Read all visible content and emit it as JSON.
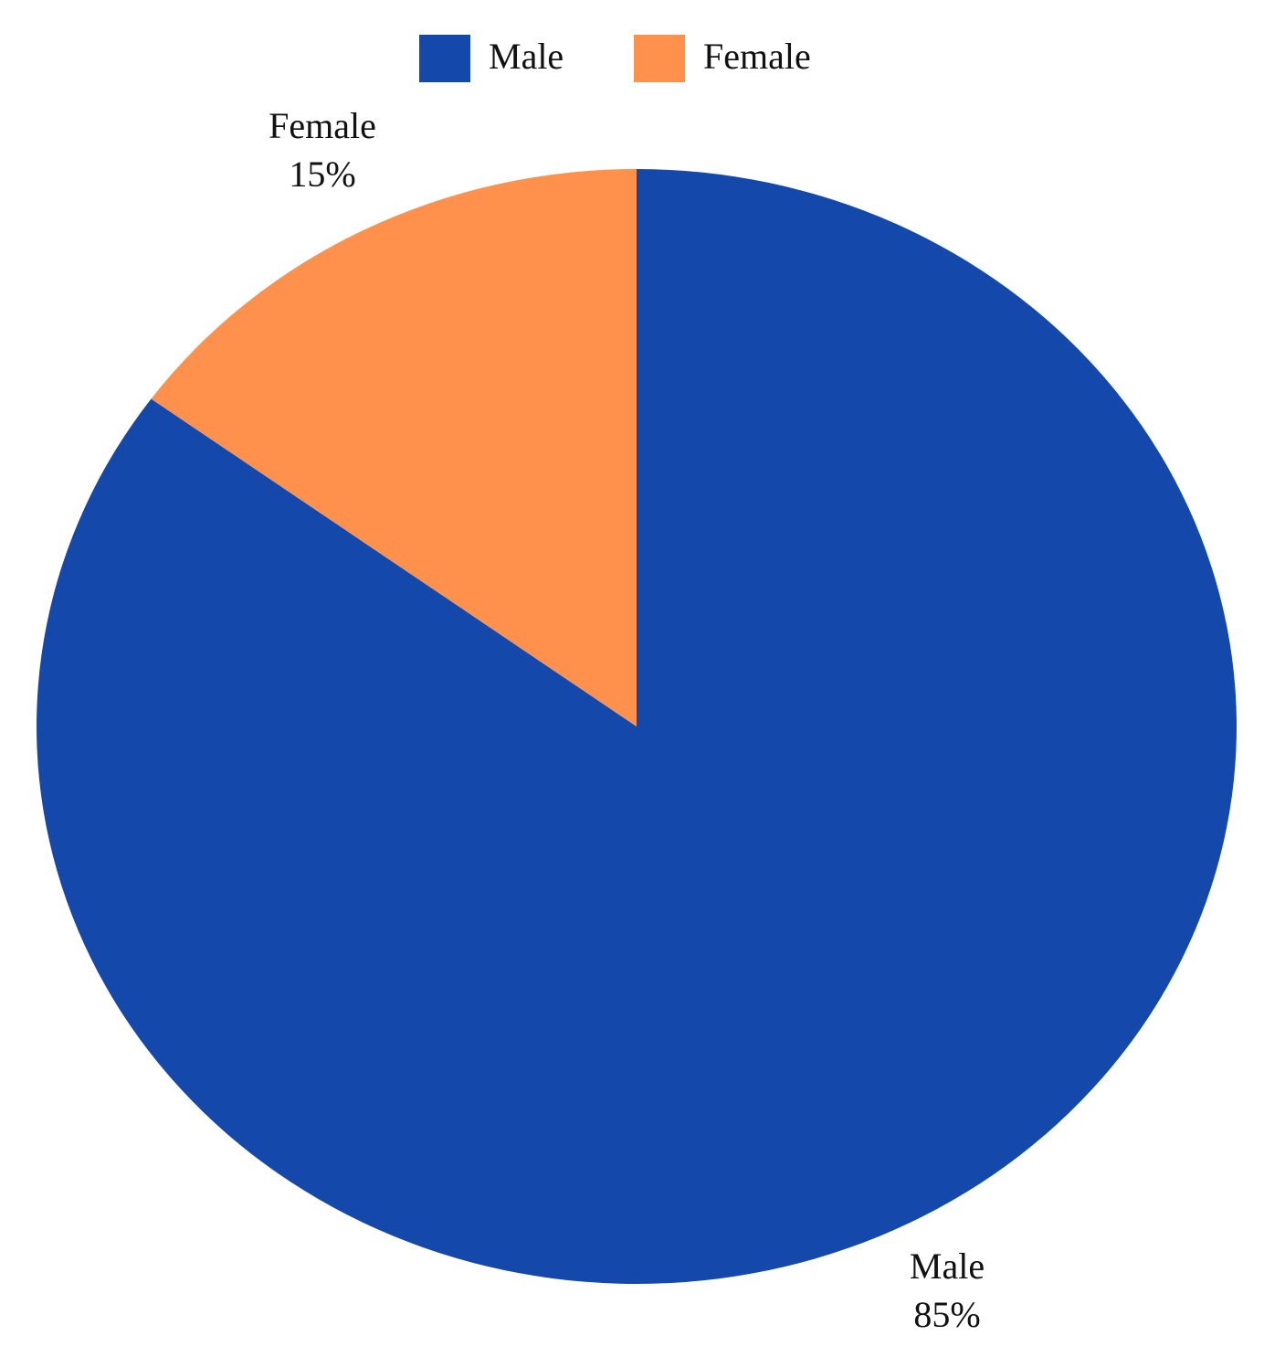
{
  "chart_data": {
    "type": "pie",
    "categories": [
      "Male",
      "Female"
    ],
    "values": [
      85,
      15
    ],
    "value_labels": [
      "85%",
      "15%"
    ],
    "colors": [
      "#1448aa",
      "#ff914d"
    ],
    "legend": "top"
  }
}
